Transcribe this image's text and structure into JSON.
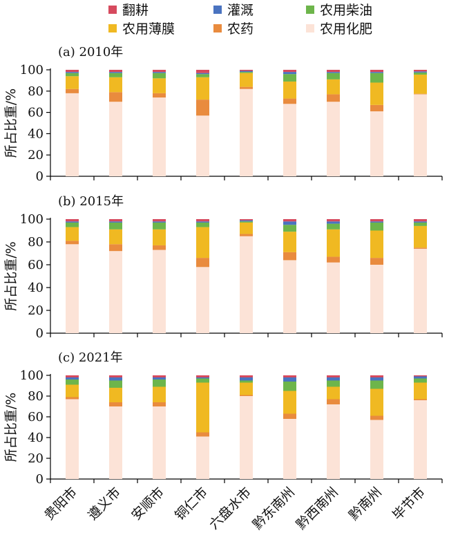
{
  "chart_data": {
    "type": "bar",
    "stacked": true,
    "legend": {
      "position": "top",
      "order": [
        "翻耕",
        "灌溉",
        "农用柴油",
        "农用薄膜",
        "农药",
        "农用化肥"
      ]
    },
    "colors": {
      "农用化肥": "#fce3d7",
      "农药": "#e98b3e",
      "农用薄膜": "#f0b922",
      "农用柴油": "#6db54b",
      "灌溉": "#4a73c0",
      "翻耕": "#d64a5e"
    },
    "categories": [
      "贵阳市",
      "遵义市",
      "安顺市",
      "铜仁市",
      "六盘水市",
      "黔东南州",
      "黔西南州",
      "黔南州",
      "毕节市"
    ],
    "ylabel": "所占比重/%",
    "ylim": [
      0,
      100
    ],
    "yticks": [
      0,
      20,
      40,
      60,
      80,
      100
    ],
    "panels": [
      {
        "title": "(a) 2010年",
        "series": [
          {
            "name": "农用化肥",
            "values": [
              78,
              70,
              74,
              57,
              82,
              68,
              70,
              61,
              77
            ]
          },
          {
            "name": "农药",
            "values": [
              4,
              9,
              4,
              15,
              2,
              5,
              7,
              6,
              0.5
            ]
          },
          {
            "name": "农用薄膜",
            "values": [
              12,
              14,
              14,
              21,
              13,
              16,
              14,
              21,
              18
            ]
          },
          {
            "name": "农用柴油",
            "values": [
              3,
              4,
              5,
              3,
              1,
              7,
              6,
              9,
              2
            ]
          },
          {
            "name": "灌溉",
            "values": [
              1,
              1,
              1,
              1,
              1,
              2,
              1,
              1,
              1
            ]
          },
          {
            "name": "翻耕",
            "values": [
              2,
              2,
              2,
              3,
              1,
              2,
              2,
              2,
              1.5
            ]
          }
        ]
      },
      {
        "title": "(b) 2015年",
        "series": [
          {
            "name": "农用化肥",
            "values": [
              78,
              72,
              73,
              58,
              85,
              64,
              62,
              60,
              74
            ]
          },
          {
            "name": "农药",
            "values": [
              3,
              6,
              4,
              8,
              2,
              7,
              5,
              6,
              1
            ]
          },
          {
            "name": "农用薄膜",
            "values": [
              12,
              13,
              14,
              27,
              10,
              18,
              24,
              24,
              19
            ]
          },
          {
            "name": "农用柴油",
            "values": [
              4,
              6,
              6,
              4,
              1,
              6,
              5,
              7,
              3
            ]
          },
          {
            "name": "灌溉",
            "values": [
              1,
              1,
              1,
              1,
              1,
              3,
              2,
              1,
              1
            ]
          },
          {
            "name": "翻耕",
            "values": [
              2,
              2,
              2,
              2,
              1,
              2,
              2,
              2,
              2
            ]
          }
        ]
      },
      {
        "title": "(c) 2021年",
        "series": [
          {
            "name": "农用化肥",
            "values": [
              77,
              70,
              70,
              41,
              80,
              58,
              72,
              57,
              76
            ]
          },
          {
            "name": "农药",
            "values": [
              2,
              4,
              4,
              4,
              1,
              5,
              5,
              4,
              1
            ]
          },
          {
            "name": "农用薄膜",
            "values": [
              12,
              14,
              15,
              48,
              12,
              22,
              12,
              26,
              16
            ]
          },
          {
            "name": "农用柴油",
            "values": [
              5,
              7,
              7,
              4,
              2,
              9,
              6,
              8,
              4
            ]
          },
          {
            "name": "灌溉",
            "values": [
              2,
              3,
              2,
              1,
              3,
              4,
              3,
              3,
              2
            ]
          },
          {
            "name": "翻耕",
            "values": [
              2,
              2,
              2,
              2,
              2,
              2,
              2,
              2,
              1
            ]
          }
        ]
      }
    ]
  }
}
